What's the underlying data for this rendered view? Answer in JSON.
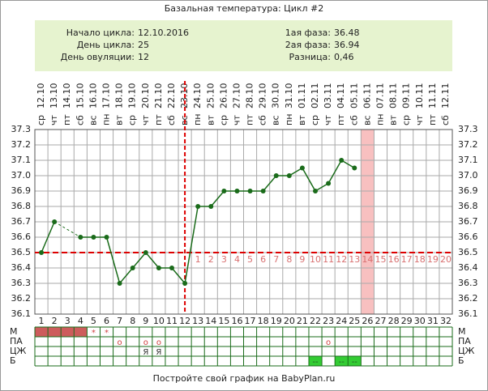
{
  "chart_data": {
    "type": "line",
    "title": "Базальная температура: Цикл #2",
    "info_left": [
      {
        "label": "Начало цикла:",
        "value": "12.10.2016"
      },
      {
        "label": "День цикла:",
        "value": "25"
      },
      {
        "label": "День овуляции:",
        "value": "12"
      }
    ],
    "info_right": [
      {
        "label": "1ая фаза:",
        "value": "36.48"
      },
      {
        "label": "2ая фаза:",
        "value": "36.94"
      },
      {
        "label": "Разница:",
        "value": "0,46"
      }
    ],
    "weekdays": [
      "ср",
      "чт",
      "пт",
      "сб",
      "вс",
      "пн",
      "вт",
      "ср",
      "чт",
      "пт",
      "сб",
      "вс",
      "пн",
      "вт",
      "ср",
      "чт",
      "пт",
      "сб",
      "вс",
      "пн",
      "вт",
      "ср",
      "чт",
      "пт",
      "сб",
      "вс",
      "пн",
      "вт",
      "ср",
      "чт",
      "пт",
      "сб"
    ],
    "x": [
      "12.10",
      "13.10",
      "14.10",
      "15.10",
      "16.10",
      "17.10",
      "18.10",
      "19.10",
      "20.10",
      "21.10",
      "22.10",
      "23.10",
      "24.10",
      "25.10",
      "26.10",
      "27.10",
      "28.10",
      "29.10",
      "30.10",
      "31.10",
      "01.11",
      "02.11",
      "03.11",
      "04.11",
      "05.11",
      "06.11",
      "07.11",
      "08.11",
      "09.11",
      "10.11",
      "11.11",
      "12.11"
    ],
    "day_numbers": [
      1,
      2,
      3,
      4,
      5,
      6,
      7,
      8,
      9,
      10,
      11,
      12,
      13,
      14,
      15,
      16,
      17,
      18,
      19,
      20,
      21,
      22,
      23,
      24,
      25,
      26,
      27,
      28,
      29,
      30,
      31,
      32
    ],
    "series": [
      {
        "color": "#1a6b1a",
        "values": [
          36.5,
          36.7,
          null,
          36.6,
          36.6,
          36.6,
          36.3,
          36.4,
          36.5,
          36.4,
          36.4,
          36.3,
          36.8,
          36.8,
          36.9,
          36.9,
          36.9,
          36.9,
          37.0,
          37.0,
          37.05,
          36.9,
          36.95,
          37.1,
          37.05,
          null,
          null,
          null,
          null,
          null,
          null,
          null
        ]
      }
    ],
    "ylim": [
      36.1,
      37.3
    ],
    "yticks": [
      36.1,
      36.2,
      36.3,
      36.4,
      36.5,
      36.6,
      36.7,
      36.8,
      36.9,
      {
        "value": 37,
        "label": "37.0"
      },
      37.1,
      37.2,
      37.3
    ],
    "grid": true,
    "ovulation_day": 12,
    "coverline": 36.5,
    "marker_color": "#dd0000",
    "highlight_day": 26,
    "highlight_color": "#f8c0c0",
    "post_ovulation_days": [
      1,
      2,
      3,
      4,
      5,
      6,
      7,
      8,
      9,
      10,
      11,
      12,
      13,
      14,
      15,
      16,
      17,
      18,
      19,
      20
    ],
    "rows": [
      {
        "label": "М",
        "color": "#d04040",
        "entries": [
          {
            "day": 1,
            "fill": "#cd5c5c"
          },
          {
            "day": 2,
            "fill": "#cd5c5c"
          },
          {
            "day": 3,
            "fill": "#cd5c5c"
          },
          {
            "day": 4,
            "fill": "#cd5c5c"
          },
          {
            "day": 5,
            "text": "*"
          },
          {
            "day": 6,
            "text": "*"
          }
        ]
      },
      {
        "label": "ПА",
        "color": "#d04040",
        "entries": [
          {
            "day": 7,
            "text": "o"
          },
          {
            "day": 9,
            "text": "o"
          },
          {
            "day": 10,
            "text": "o"
          },
          {
            "day": 23,
            "text": "o"
          }
        ]
      },
      {
        "label": "ЦЖ",
        "color": "#333333",
        "entries": [
          {
            "day": 9,
            "text": "Я"
          },
          {
            "day": 10,
            "text": "Я"
          }
        ]
      },
      {
        "label": "Б",
        "color": "#225522",
        "entries": [
          {
            "day": 22,
            "fill": "#33cc33",
            "text": "--"
          },
          {
            "day": 24,
            "fill": "#33cc33",
            "text": "--"
          },
          {
            "day": 25,
            "fill": "#33cc33",
            "text": "--"
          }
        ]
      }
    ],
    "footer": "Постройте свой график на BabyPlan.ru"
  }
}
